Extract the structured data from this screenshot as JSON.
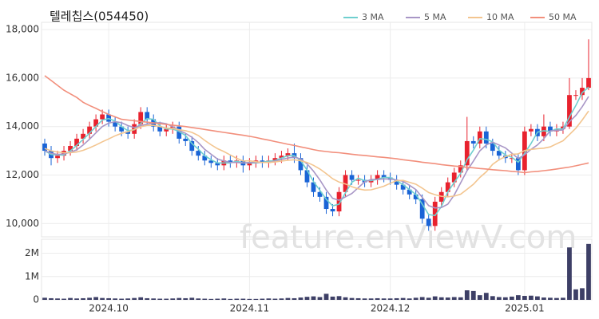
{
  "watermark": "feature.enViewV.com",
  "chart_data": [
    {
      "type": "candlestick",
      "title": "텔레칩스(054450)",
      "open": [
        13300,
        13000,
        12700,
        12800,
        13000,
        13200,
        13500,
        13700,
        14000,
        14300,
        14500,
        14200,
        14000,
        13800,
        13700,
        14100,
        14600,
        14300,
        14000,
        13800,
        13900,
        14000,
        13500,
        13400,
        13000,
        12800,
        12600,
        12500,
        12400,
        12600,
        12500,
        12600,
        12400,
        12500,
        12600,
        12500,
        12600,
        12700,
        12800,
        12900,
        12700,
        12200,
        11700,
        11300,
        11100,
        10600,
        10500,
        11300,
        12000,
        11800,
        11800,
        11700,
        11800,
        12000,
        11900,
        11800,
        11600,
        11400,
        11200,
        11000,
        10200,
        9900,
        10900,
        11300,
        11700,
        12100,
        12400,
        13400,
        13300,
        13800,
        13300,
        13000,
        12800,
        12700,
        12700,
        12200,
        13800,
        13900,
        13600,
        14000,
        13800,
        13900,
        14000,
        15300,
        15300,
        15600
      ],
      "high": [
        13500,
        13200,
        13000,
        13200,
        13400,
        13700,
        13900,
        14200,
        14500,
        14700,
        14700,
        14400,
        14200,
        14000,
        14300,
        14800,
        14800,
        14500,
        14200,
        14100,
        14200,
        14200,
        13700,
        13600,
        13200,
        13000,
        12800,
        12700,
        12800,
        12800,
        12800,
        12800,
        12700,
        12800,
        12800,
        12800,
        12900,
        13000,
        13100,
        13300,
        12900,
        12400,
        11900,
        11500,
        11300,
        10800,
        11500,
        12200,
        12200,
        12000,
        12000,
        12000,
        12200,
        12200,
        12100,
        12000,
        11800,
        11600,
        11400,
        11200,
        10400,
        11100,
        11500,
        11900,
        12300,
        12600,
        14400,
        13600,
        14000,
        14000,
        13500,
        13200,
        13000,
        12900,
        12900,
        14000,
        14100,
        14100,
        14500,
        14200,
        14100,
        14200,
        16000,
        15500,
        16000,
        17600
      ],
      "low": [
        12800,
        12400,
        12500,
        12600,
        12800,
        13000,
        13300,
        13500,
        13800,
        14100,
        14000,
        13800,
        13600,
        13500,
        13500,
        13900,
        14100,
        13800,
        13600,
        13600,
        13700,
        13300,
        13200,
        12800,
        12600,
        12400,
        12300,
        12200,
        12200,
        12300,
        12300,
        12100,
        12200,
        12300,
        12300,
        12300,
        12400,
        12500,
        12600,
        12500,
        12000,
        11500,
        11100,
        10900,
        10400,
        10300,
        10300,
        11100,
        11600,
        11600,
        11500,
        11500,
        11600,
        11700,
        11600,
        11400,
        11200,
        11000,
        10800,
        10000,
        9700,
        9700,
        10700,
        11100,
        11500,
        11900,
        12200,
        13100,
        13100,
        13100,
        12800,
        12600,
        12500,
        12500,
        12000,
        12000,
        13600,
        13400,
        13400,
        13600,
        13600,
        13700,
        13900,
        15100,
        15100,
        15500
      ],
      "close": [
        13000,
        12700,
        12800,
        13000,
        13200,
        13500,
        13700,
        14000,
        14300,
        14500,
        14200,
        14000,
        13800,
        13700,
        14100,
        14600,
        14300,
        14000,
        13800,
        13900,
        14000,
        13500,
        13400,
        13000,
        12800,
        12600,
        12500,
        12400,
        12600,
        12500,
        12600,
        12400,
        12500,
        12600,
        12500,
        12600,
        12700,
        12800,
        12900,
        12700,
        12200,
        11700,
        11300,
        11100,
        10600,
        10500,
        11300,
        12000,
        11800,
        11800,
        11700,
        11800,
        12000,
        11900,
        11800,
        11600,
        11400,
        11200,
        11000,
        10200,
        9900,
        10900,
        11300,
        11700,
        12100,
        12400,
        13400,
        13300,
        13800,
        13300,
        13000,
        12800,
        12700,
        12700,
        12200,
        13800,
        13900,
        13600,
        14000,
        13800,
        13900,
        14000,
        15300,
        15300,
        15600,
        16000
      ],
      "up_color": "#e8222e",
      "down_color": "#1a64d6",
      "series": [
        {
          "name": "3 MA",
          "color": "#6fcfcf",
          "values": [
            13000,
            12850,
            12830,
            12830,
            13000,
            13230,
            13470,
            13730,
            14000,
            14270,
            14330,
            14230,
            14000,
            13830,
            13870,
            14130,
            14330,
            14300,
            14030,
            13900,
            13900,
            13800,
            13630,
            13300,
            13070,
            12800,
            12630,
            12500,
            12500,
            12500,
            12570,
            12500,
            12500,
            12500,
            12530,
            12570,
            12600,
            12700,
            12800,
            12800,
            12600,
            12200,
            11730,
            11370,
            11000,
            10730,
            10800,
            11270,
            11700,
            11870,
            11770,
            11770,
            11830,
            11900,
            11900,
            11770,
            11600,
            11400,
            11200,
            10800,
            10370,
            10330,
            10700,
            11300,
            11700,
            12070,
            12630,
            13030,
            13500,
            13470,
            13370,
            13030,
            12830,
            12730,
            12530,
            12900,
            13300,
            13770,
            13830,
            13800,
            13900,
            13900,
            14400,
            14870,
            15400,
            15630
          ]
        },
        {
          "name": "5 MA",
          "color": "#a896c6",
          "values": [
            13000,
            12900,
            12850,
            12870,
            12940,
            13040,
            13240,
            13480,
            13740,
            14000,
            14140,
            14200,
            14160,
            14040,
            13960,
            14040,
            14100,
            14140,
            14160,
            14120,
            14000,
            13840,
            13720,
            13560,
            13340,
            13060,
            12860,
            12660,
            12580,
            12520,
            12520,
            12500,
            12520,
            12520,
            12520,
            12520,
            12580,
            12640,
            12700,
            12740,
            12660,
            12460,
            12160,
            11800,
            11380,
            11040,
            10960,
            11100,
            11240,
            11480,
            11720,
            11820,
            11820,
            11840,
            11840,
            11800,
            11740,
            11580,
            11400,
            11080,
            10740,
            10640,
            10660,
            10800,
            11180,
            11680,
            12180,
            12580,
            13000,
            13240,
            13360,
            13240,
            13120,
            12900,
            12680,
            12840,
            13060,
            13240,
            13500,
            13820,
            13840,
            13860,
            14200,
            14460,
            14820,
            15240
          ]
        },
        {
          "name": "10 MA",
          "color": "#f3c58f",
          "values": [
            13100,
            13000,
            12950,
            12920,
            12920,
            12950,
            13020,
            13120,
            13240,
            13370,
            13490,
            13620,
            13720,
            13790,
            13880,
            13990,
            14050,
            14050,
            14000,
            13940,
            13920,
            13870,
            13830,
            13760,
            13630,
            13430,
            13250,
            13090,
            12970,
            12830,
            12690,
            12580,
            12590,
            12550,
            12520,
            12520,
            12540,
            12580,
            12610,
            12630,
            12590,
            12520,
            12400,
            12250,
            12060,
            11850,
            11710,
            11630,
            11520,
            11430,
            11380,
            11390,
            11460,
            11540,
            11660,
            11770,
            11780,
            11700,
            11620,
            11460,
            11280,
            11190,
            11120,
            11100,
            11130,
            11210,
            11410,
            11620,
            11900,
            12130,
            12440,
            12630,
            12760,
            12860,
            12870,
            13010,
            13060,
            13090,
            13110,
            13160,
            13290,
            13410,
            13670,
            13930,
            14270,
            14640
          ]
        },
        {
          "name": "50 MA",
          "color": "#f28f7c",
          "values": [
            16100,
            15900,
            15700,
            15500,
            15350,
            15200,
            15000,
            14870,
            14750,
            14620,
            14500,
            14400,
            14300,
            14270,
            14240,
            14210,
            14180,
            14150,
            14120,
            14090,
            14060,
            14030,
            14000,
            13960,
            13920,
            13880,
            13840,
            13800,
            13760,
            13720,
            13680,
            13640,
            13600,
            13550,
            13490,
            13440,
            13380,
            13330,
            13270,
            13220,
            13160,
            13110,
            13050,
            13000,
            12970,
            12940,
            12920,
            12890,
            12860,
            12830,
            12810,
            12780,
            12750,
            12730,
            12700,
            12670,
            12630,
            12600,
            12570,
            12530,
            12500,
            12470,
            12430,
            12400,
            12370,
            12350,
            12320,
            12300,
            12270,
            12250,
            12220,
            12200,
            12180,
            12150,
            12130,
            12100,
            12130,
            12150,
            12180,
            12210,
            12250,
            12290,
            12330,
            12380,
            12440,
            12500
          ]
        }
      ],
      "ylim": [
        9450,
        18300
      ],
      "yticks": [
        {
          "value": 10000,
          "label": "10,000"
        },
        {
          "value": 12000,
          "label": "12,000"
        },
        {
          "value": 14000,
          "label": "14,000"
        },
        {
          "value": 16000,
          "label": "16,000"
        },
        {
          "value": 18000,
          "label": "18,000"
        }
      ],
      "grid": true,
      "legend": "top-right"
    },
    {
      "type": "bar",
      "color": "#3d3f66",
      "categories": [
        null,
        null,
        null,
        null,
        null,
        null,
        null,
        null,
        null,
        null,
        "2024.10",
        null,
        null,
        null,
        null,
        null,
        null,
        null,
        null,
        null,
        null,
        null,
        null,
        null,
        null,
        null,
        null,
        null,
        null,
        null,
        null,
        null,
        "2024.11",
        null,
        null,
        null,
        null,
        null,
        null,
        null,
        null,
        null,
        null,
        null,
        null,
        null,
        null,
        null,
        null,
        null,
        null,
        null,
        null,
        null,
        "2024.12",
        null,
        null,
        null,
        null,
        null,
        null,
        null,
        null,
        null,
        null,
        null,
        null,
        null,
        null,
        null,
        null,
        null,
        null,
        null,
        null,
        "2025.01",
        null,
        null,
        null,
        null,
        null,
        null,
        null,
        null,
        null,
        null
      ],
      "values": [
        90000,
        70000,
        60000,
        50000,
        80000,
        60000,
        70000,
        90000,
        120000,
        80000,
        70000,
        60000,
        50000,
        60000,
        80000,
        110000,
        70000,
        60000,
        50000,
        50000,
        60000,
        80000,
        70000,
        90000,
        60000,
        50000,
        40000,
        50000,
        60000,
        40000,
        50000,
        50000,
        40000,
        40000,
        50000,
        60000,
        50000,
        60000,
        80000,
        70000,
        100000,
        130000,
        150000,
        120000,
        260000,
        140000,
        160000,
        110000,
        80000,
        70000,
        60000,
        60000,
        70000,
        60000,
        60000,
        70000,
        80000,
        60000,
        90000,
        120000,
        90000,
        150000,
        110000,
        100000,
        120000,
        110000,
        410000,
        380000,
        200000,
        300000,
        160000,
        120000,
        110000,
        140000,
        200000,
        170000,
        180000,
        150000,
        100000,
        90000,
        80000,
        90000,
        2250000,
        450000,
        500000,
        2400000
      ],
      "ylim": [
        0,
        2600000
      ],
      "yticks": [
        0,
        {
          "value": 1000000,
          "label": "1M"
        },
        {
          "value": 2000000,
          "label": "2M"
        }
      ],
      "grid": true
    }
  ]
}
